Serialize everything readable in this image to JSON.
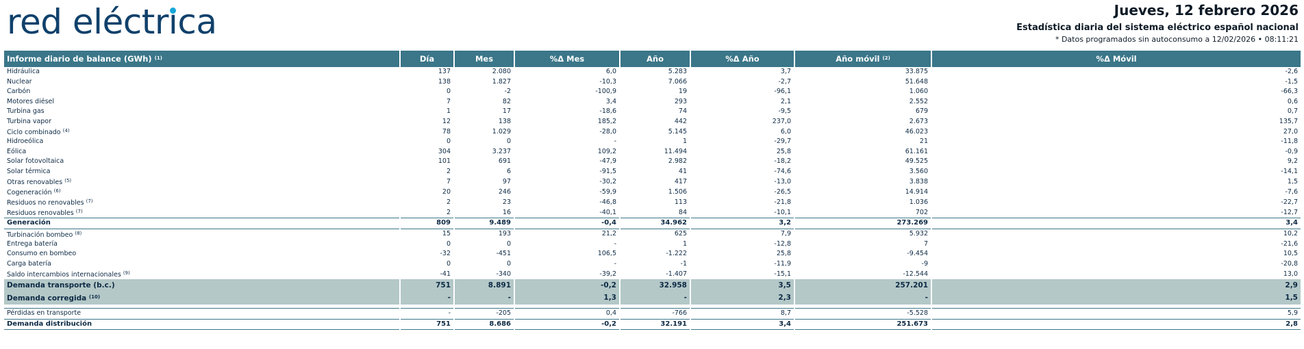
{
  "brand": {
    "part1": "red eléctr",
    "i_letter": "ı",
    "part2": "ca"
  },
  "header": {
    "date": "Jueves, 12 febrero 2026",
    "subtitle": "Estadística diaria del sistema eléctrico español nacional",
    "note": "* Datos programados sin autoconsumo a 12/02/2026 • 08:11:21"
  },
  "columns": [
    {
      "label": "Informe diario de balance (GWh)",
      "sup": "(1)"
    },
    {
      "label": "Día",
      "sup": ""
    },
    {
      "label": "Mes",
      "sup": ""
    },
    {
      "label": "%Δ Mes",
      "sup": ""
    },
    {
      "label": "Año",
      "sup": ""
    },
    {
      "label": "%Δ Año",
      "sup": ""
    },
    {
      "label": "Año móvil",
      "sup": "(2)"
    },
    {
      "label": "%Δ Móvil",
      "sup": ""
    }
  ],
  "rows": [
    {
      "label": "Hidráulica",
      "sup": "",
      "values": [
        "137",
        "2.080",
        "6,0",
        "5.283",
        "3,7",
        "33.875",
        "-2,6"
      ]
    },
    {
      "label": "Nuclear",
      "sup": "",
      "values": [
        "138",
        "1.827",
        "-10,3",
        "7.066",
        "-2,7",
        "51.648",
        "-1,5"
      ]
    },
    {
      "label": "Carbón",
      "sup": "",
      "values": [
        "0",
        "-2",
        "-100,9",
        "19",
        "-96,1",
        "1.060",
        "-66,3"
      ]
    },
    {
      "label": "Motores diésel",
      "sup": "",
      "values": [
        "7",
        "82",
        "3,4",
        "293",
        "2,1",
        "2.552",
        "0,6"
      ]
    },
    {
      "label": "Turbina gas",
      "sup": "",
      "values": [
        "1",
        "17",
        "-18,6",
        "74",
        "-9,5",
        "679",
        "0,7"
      ]
    },
    {
      "label": "Turbina vapor",
      "sup": "",
      "values": [
        "12",
        "138",
        "185,2",
        "442",
        "237,0",
        "2.673",
        "135,7"
      ]
    },
    {
      "label": "Ciclo combinado",
      "sup": "(4)",
      "values": [
        "78",
        "1.029",
        "-28,0",
        "5.145",
        "6,0",
        "46.023",
        "27,0"
      ]
    },
    {
      "label": "Hidroeólica",
      "sup": "",
      "values": [
        "0",
        "0",
        "-",
        "1",
        "-29,7",
        "21",
        "-11,8"
      ]
    },
    {
      "label": "Eólica",
      "sup": "",
      "values": [
        "304",
        "3.237",
        "109,2",
        "11.494",
        "25,8",
        "61.161",
        "-0,9"
      ]
    },
    {
      "label": "Solar fotovoltaica",
      "sup": "",
      "values": [
        "101",
        "691",
        "-47,9",
        "2.982",
        "-18,2",
        "49.525",
        "9,2"
      ]
    },
    {
      "label": "Solar térmica",
      "sup": "",
      "values": [
        "2",
        "6",
        "-91,5",
        "41",
        "-74,6",
        "3.560",
        "-14,1"
      ]
    },
    {
      "label": "Otras renovables",
      "sup": "(5)",
      "values": [
        "7",
        "97",
        "-30,2",
        "417",
        "-13,0",
        "3.838",
        "1,5"
      ]
    },
    {
      "label": "Cogeneración",
      "sup": "(6)",
      "values": [
        "20",
        "246",
        "-59,9",
        "1.506",
        "-26,5",
        "14.914",
        "-7,6"
      ]
    },
    {
      "label": "Residuos no renovables",
      "sup": "(7)",
      "values": [
        "2",
        "23",
        "-46,8",
        "113",
        "-21,8",
        "1.036",
        "-22,7"
      ]
    },
    {
      "label": "Residuos renovables",
      "sup": "(7)",
      "values": [
        "2",
        "16",
        "-40,1",
        "84",
        "-10,1",
        "702",
        "-12,7"
      ]
    },
    {
      "label": "Generación",
      "sup": "",
      "type": "total",
      "values": [
        "809",
        "9.489",
        "-0,4",
        "34.962",
        "3,2",
        "273.269",
        "3,4"
      ]
    },
    {
      "label": "Turbinación bombeo",
      "sup": "(8)",
      "values": [
        "15",
        "193",
        "21,2",
        "625",
        "7,9",
        "5.932",
        "10,2"
      ]
    },
    {
      "label": "Entrega batería",
      "sup": "",
      "values": [
        "0",
        "0",
        "-",
        "1",
        "-12,8",
        "7",
        "-21,6"
      ]
    },
    {
      "label": "Consumo en bombeo",
      "sup": "",
      "values": [
        "-32",
        "-451",
        "106,5",
        "-1.222",
        "25,8",
        "-9.454",
        "10,5"
      ]
    },
    {
      "label": "Carga batería",
      "sup": "",
      "values": [
        "0",
        "0",
        "-",
        "-1",
        "-11,9",
        "-9",
        "-20,8"
      ]
    },
    {
      "label": "Saldo intercambios internacionales",
      "sup": "(9)",
      "values": [
        "-41",
        "-340",
        "-39,2",
        "-1.407",
        "-15,1",
        "-12.544",
        "13,0"
      ]
    },
    {
      "label": "Demanda transporte (b.c.)",
      "sup": "",
      "type": "highlight",
      "values": [
        "751",
        "8.891",
        "-0,2",
        "32.958",
        "3,5",
        "257.201",
        "2,9"
      ]
    },
    {
      "label": "Demanda corregida",
      "sup": "(10)",
      "type": "highlight2",
      "values": [
        "-",
        "-",
        "1,3",
        "-",
        "2,3",
        "-",
        "1,5"
      ]
    },
    {
      "label": "Pérdidas en transporte",
      "sup": "",
      "type": "after-gap",
      "values": [
        "-",
        "-205",
        "0,4",
        "-766",
        "8,7",
        "-5.528",
        "5,9"
      ]
    },
    {
      "label": "Demanda distribución",
      "sup": "",
      "type": "final",
      "values": [
        "751",
        "8.686",
        "-0,2",
        "32.191",
        "3,4",
        "251.673",
        "2,8"
      ]
    }
  ]
}
